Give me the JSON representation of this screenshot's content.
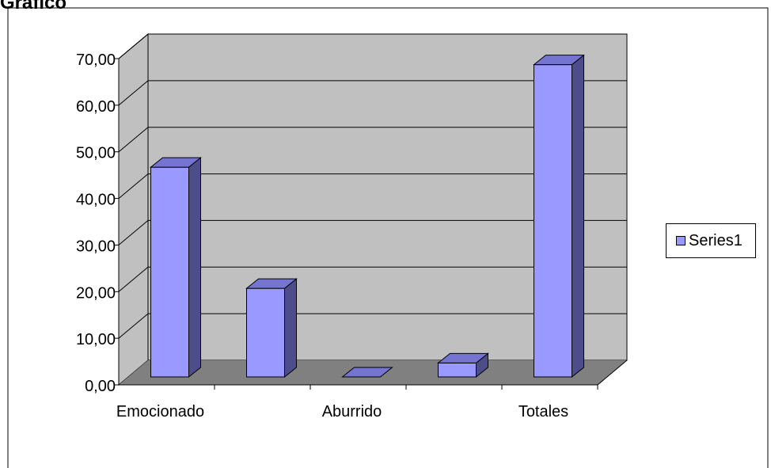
{
  "title_fragment": "Gráfico",
  "chart_data": {
    "type": "bar",
    "categories": [
      "Emocionado",
      "",
      "Aburrido",
      "",
      "Totales"
    ],
    "series": [
      {
        "name": "Series1",
        "values": [
          45.0,
          19.0,
          0.0,
          3.0,
          67.0
        ]
      }
    ],
    "y_ticks": [
      "0,00",
      "10,00",
      "20,00",
      "30,00",
      "40,00",
      "50,00",
      "60,00",
      "70,00"
    ],
    "ylim": [
      0,
      70
    ],
    "grid": true,
    "legend": "right",
    "colors": {
      "bar_face": "#9999ff",
      "bar_side": "#4d4d8c",
      "bar_top": "#7575d1",
      "wall": "#c0c0c0",
      "floor": "#808080",
      "outline": "#000000"
    }
  }
}
